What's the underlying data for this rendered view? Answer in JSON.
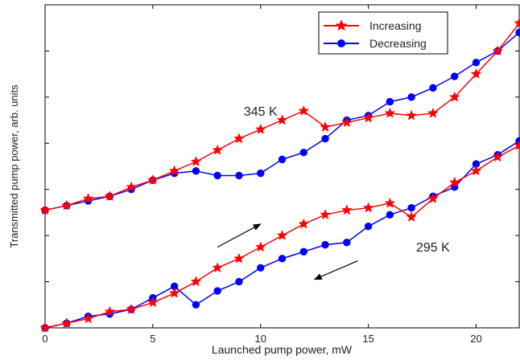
{
  "chart_data": {
    "type": "line",
    "xlabel": "Launched pump power, mW",
    "ylabel": "Transmitted pump power, arb. units",
    "xlim": [
      0,
      22
    ],
    "ylim": [
      0,
      7
    ],
    "x_ticks": [
      0,
      5,
      10,
      15,
      20
    ],
    "y_ticks_labeled": false,
    "grid": false,
    "legend": {
      "position": "top-right",
      "entries": [
        "Increasing",
        "Decreasing"
      ]
    },
    "series_colors": {
      "Increasing": "#ff0000",
      "Decreasing": "#0000ff"
    },
    "annotations": [
      {
        "text": "345 K",
        "x": 10.0,
        "y": 4.6
      },
      {
        "text": "295 K",
        "x": 18.0,
        "y": 1.65
      }
    ],
    "arrows": [
      {
        "direction": "up-right",
        "from": [
          8,
          1.75
        ],
        "to": [
          10,
          2.25
        ]
      },
      {
        "direction": "down-left",
        "from": [
          14.5,
          1.45
        ],
        "to": [
          12.5,
          1.05
        ]
      }
    ],
    "groups": [
      {
        "label": "345 K",
        "series": [
          {
            "name": "Increasing",
            "marker": "star",
            "x": [
              0,
              1,
              2,
              3,
              4,
              5,
              6,
              7,
              8,
              9,
              10,
              11,
              12,
              13,
              14,
              15,
              16,
              17,
              18,
              19,
              20,
              21,
              22
            ],
            "y": [
              2.55,
              2.65,
              2.8,
              2.85,
              3.05,
              3.2,
              3.4,
              3.6,
              3.85,
              4.1,
              4.3,
              4.5,
              4.7,
              4.35,
              4.45,
              4.55,
              4.65,
              4.6,
              4.65,
              5.0,
              5.5,
              6.0,
              6.6
            ]
          },
          {
            "name": "Decreasing",
            "marker": "circle",
            "x": [
              0,
              1,
              2,
              3,
              4,
              5,
              6,
              7,
              8,
              9,
              10,
              11,
              12,
              13,
              14,
              15,
              16,
              17,
              18,
              19,
              20,
              21,
              22
            ],
            "y": [
              2.55,
              2.65,
              2.75,
              2.85,
              3.0,
              3.2,
              3.35,
              3.4,
              3.3,
              3.3,
              3.35,
              3.65,
              3.8,
              4.1,
              4.5,
              4.6,
              4.9,
              5.0,
              5.2,
              5.45,
              5.75,
              6.0,
              6.4
            ]
          }
        ]
      },
      {
        "label": "295 K",
        "series": [
          {
            "name": "Increasing",
            "marker": "star",
            "x": [
              0,
              1,
              2,
              3,
              4,
              5,
              6,
              7,
              8,
              9,
              10,
              11,
              12,
              13,
              14,
              15,
              16,
              17,
              18,
              19,
              20,
              21,
              22
            ],
            "y": [
              0.0,
              0.1,
              0.2,
              0.35,
              0.4,
              0.55,
              0.75,
              1.0,
              1.3,
              1.5,
              1.75,
              2.0,
              2.25,
              2.45,
              2.55,
              2.6,
              2.7,
              2.4,
              2.8,
              3.15,
              3.4,
              3.7,
              3.95
            ]
          },
          {
            "name": "Decreasing",
            "marker": "circle",
            "x": [
              0,
              1,
              2,
              3,
              4,
              5,
              6,
              7,
              8,
              9,
              10,
              11,
              12,
              13,
              14,
              15,
              16,
              17,
              18,
              19,
              20,
              21,
              22
            ],
            "y": [
              0.0,
              0.1,
              0.25,
              0.3,
              0.4,
              0.65,
              0.9,
              0.5,
              0.8,
              1.0,
              1.3,
              1.5,
              1.65,
              1.8,
              1.85,
              2.2,
              2.45,
              2.6,
              2.85,
              3.05,
              3.55,
              3.75,
              4.05
            ]
          }
        ]
      }
    ]
  }
}
